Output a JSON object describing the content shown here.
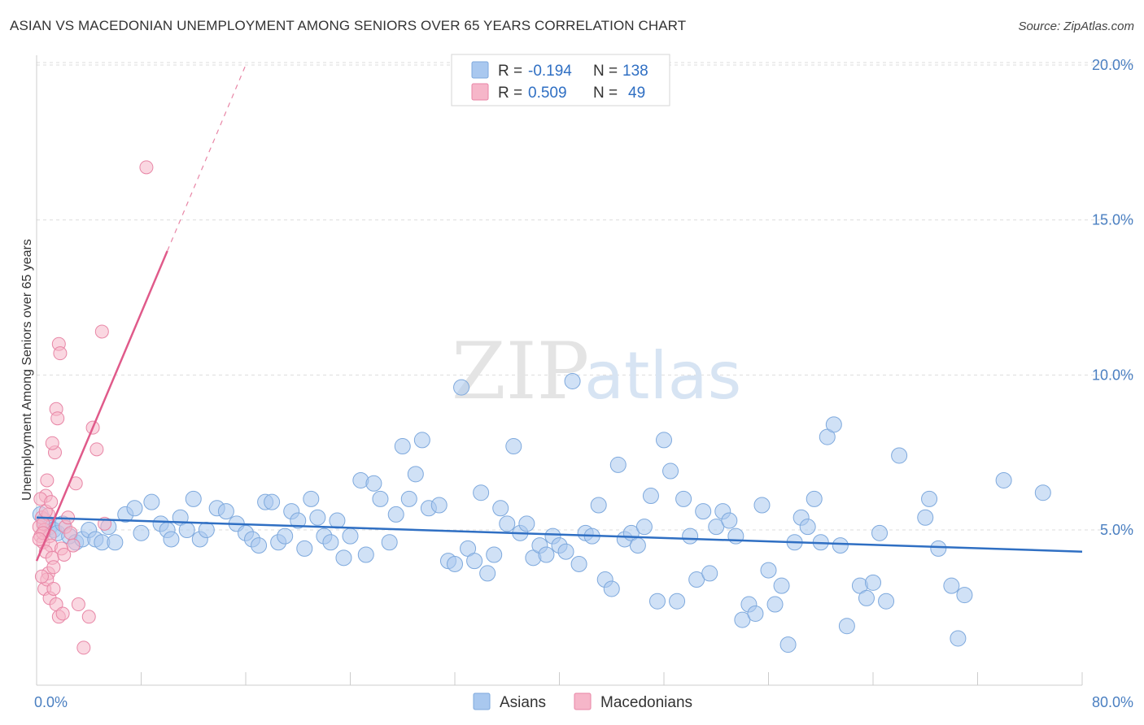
{
  "title": "ASIAN VS MACEDONIAN UNEMPLOYMENT AMONG SENIORS OVER 65 YEARS CORRELATION CHART",
  "source": "Source: ZipAtlas.com",
  "watermark": {
    "zip": "ZIP",
    "atlas": "atlas"
  },
  "colors": {
    "asian": "#a9c8ef",
    "asian_stroke": "#7ea9dd",
    "asian_line": "#2f6fc3",
    "mac": "#f6b6c9",
    "mac_stroke": "#e886a6",
    "mac_line": "#e05a8a"
  },
  "legend": {
    "r_label": "R =",
    "n_label": "N =",
    "asian": {
      "r": "-0.194",
      "n": "138"
    },
    "mac": {
      "r": "0.509",
      "n": "49"
    }
  },
  "chart_data": {
    "type": "scatter",
    "title": "ASIAN VS MACEDONIAN UNEMPLOYMENT AMONG SENIORS OVER 65 YEARS CORRELATION CHART",
    "xlabel": "",
    "ylabel": "Unemployment Among Seniors over 65 years",
    "xlim": [
      0,
      80
    ],
    "ylim": [
      0,
      21
    ],
    "x_tick_labels": [
      "0.0%",
      "80.0%"
    ],
    "y_ticks": [
      5,
      10,
      15,
      20
    ],
    "y_tick_labels": [
      "5.0%",
      "10.0%",
      "15.0%",
      "20.0%"
    ],
    "grid": true,
    "legend_position": "top-center",
    "series": [
      {
        "name": "Asians",
        "r": -0.194,
        "n": 138,
        "trend": {
          "x": [
            0,
            80
          ],
          "y": [
            5.4,
            4.3
          ]
        },
        "points": [
          [
            0.3,
            5.5
          ],
          [
            0.6,
            5.3
          ],
          [
            1,
            5.1
          ],
          [
            1.3,
            5
          ],
          [
            1.6,
            4.9
          ],
          [
            2,
            5.2
          ],
          [
            2.5,
            4.8
          ],
          [
            3,
            4.6
          ],
          [
            3.5,
            4.7
          ],
          [
            4,
            5
          ],
          [
            4.5,
            4.7
          ],
          [
            5,
            4.6
          ],
          [
            5.5,
            5.1
          ],
          [
            6,
            4.6
          ],
          [
            6.8,
            5.5
          ],
          [
            7.5,
            5.7
          ],
          [
            8,
            4.9
          ],
          [
            8.8,
            5.9
          ],
          [
            9.5,
            5.2
          ],
          [
            10,
            5
          ],
          [
            10.3,
            4.7
          ],
          [
            11,
            5.4
          ],
          [
            11.5,
            5
          ],
          [
            12,
            6
          ],
          [
            12.5,
            4.7
          ],
          [
            13,
            5
          ],
          [
            13.8,
            5.7
          ],
          [
            14.5,
            5.6
          ],
          [
            15.3,
            5.2
          ],
          [
            16,
            4.9
          ],
          [
            16.5,
            4.7
          ],
          [
            17,
            4.5
          ],
          [
            17.5,
            5.9
          ],
          [
            18,
            5.9
          ],
          [
            18.5,
            4.6
          ],
          [
            19,
            4.8
          ],
          [
            19.5,
            5.6
          ],
          [
            20,
            5.3
          ],
          [
            20.5,
            4.4
          ],
          [
            21,
            6
          ],
          [
            21.5,
            5.4
          ],
          [
            22,
            4.8
          ],
          [
            22.5,
            4.6
          ],
          [
            23,
            5.3
          ],
          [
            23.5,
            4.1
          ],
          [
            24,
            4.8
          ],
          [
            24.8,
            6.6
          ],
          [
            25.2,
            4.2
          ],
          [
            25.8,
            6.5
          ],
          [
            26.3,
            6
          ],
          [
            27,
            4.6
          ],
          [
            27.5,
            5.5
          ],
          [
            28,
            7.7
          ],
          [
            28.5,
            6
          ],
          [
            29,
            6.8
          ],
          [
            29.5,
            7.9
          ],
          [
            30,
            5.7
          ],
          [
            30.8,
            5.8
          ],
          [
            31.5,
            4
          ],
          [
            32,
            3.9
          ],
          [
            32.5,
            9.6
          ],
          [
            33,
            4.4
          ],
          [
            33.5,
            4
          ],
          [
            34,
            6.2
          ],
          [
            34.5,
            3.6
          ],
          [
            35,
            4.2
          ],
          [
            35.5,
            5.7
          ],
          [
            36,
            5.2
          ],
          [
            36.5,
            7.7
          ],
          [
            37,
            4.9
          ],
          [
            37.5,
            5.2
          ],
          [
            38,
            4.1
          ],
          [
            38.5,
            4.5
          ],
          [
            39,
            4.2
          ],
          [
            39.5,
            4.8
          ],
          [
            40,
            4.5
          ],
          [
            40.5,
            4.3
          ],
          [
            41,
            9.8
          ],
          [
            41.5,
            3.9
          ],
          [
            42,
            4.9
          ],
          [
            42.5,
            4.8
          ],
          [
            43,
            5.8
          ],
          [
            43.5,
            3.4
          ],
          [
            44,
            3.1
          ],
          [
            44.5,
            7.1
          ],
          [
            45,
            4.7
          ],
          [
            45.5,
            4.9
          ],
          [
            46,
            4.5
          ],
          [
            46.5,
            5.1
          ],
          [
            47,
            6.1
          ],
          [
            47.5,
            2.7
          ],
          [
            48,
            7.9
          ],
          [
            48.5,
            6.9
          ],
          [
            49,
            2.7
          ],
          [
            49.5,
            6
          ],
          [
            50,
            4.8
          ],
          [
            50.5,
            3.4
          ],
          [
            51,
            5.6
          ],
          [
            51.5,
            3.6
          ],
          [
            52,
            5.1
          ],
          [
            52.5,
            5.6
          ],
          [
            53,
            5.3
          ],
          [
            53.5,
            4.8
          ],
          [
            54,
            2.1
          ],
          [
            54.5,
            2.6
          ],
          [
            55,
            2.3
          ],
          [
            55.5,
            5.8
          ],
          [
            56,
            3.7
          ],
          [
            56.5,
            2.6
          ],
          [
            57,
            3.2
          ],
          [
            57.5,
            1.3
          ],
          [
            58,
            4.6
          ],
          [
            58.5,
            5.4
          ],
          [
            59,
            5.1
          ],
          [
            59.5,
            6
          ],
          [
            60,
            4.6
          ],
          [
            60.5,
            8
          ],
          [
            61,
            8.4
          ],
          [
            61.5,
            4.5
          ],
          [
            62,
            1.9
          ],
          [
            63,
            3.2
          ],
          [
            63.5,
            2.8
          ],
          [
            64,
            3.3
          ],
          [
            64.5,
            4.9
          ],
          [
            65,
            2.7
          ],
          [
            66,
            7.4
          ],
          [
            68,
            5.4
          ],
          [
            68.3,
            6
          ],
          [
            70,
            3.2
          ],
          [
            70.5,
            1.5
          ],
          [
            71,
            2.9
          ],
          [
            74,
            6.6
          ],
          [
            77,
            6.2
          ],
          [
            69,
            4.4
          ]
        ]
      },
      {
        "name": "Macedonians",
        "r": 0.509,
        "n": 49,
        "trend": {
          "x": [
            0,
            10
          ],
          "y": [
            4.0,
            14.0
          ]
        },
        "trend_dashed": {
          "x": [
            10,
            16
          ],
          "y": [
            14.0,
            20.0
          ]
        },
        "points": [
          [
            0.2,
            5.1
          ],
          [
            0.3,
            4.8
          ],
          [
            0.4,
            5.4
          ],
          [
            0.5,
            4.6
          ],
          [
            0.6,
            5
          ],
          [
            0.7,
            6.1
          ],
          [
            0.8,
            6.6
          ],
          [
            0.9,
            5.5
          ],
          [
            1,
            4.8
          ],
          [
            1.1,
            4.5
          ],
          [
            0.3,
            6
          ],
          [
            0.5,
            5.2
          ],
          [
            0.7,
            4.3
          ],
          [
            0.9,
            3.6
          ],
          [
            1.2,
            4.1
          ],
          [
            1.4,
            7.5
          ],
          [
            1.5,
            8.9
          ],
          [
            1.6,
            8.6
          ],
          [
            1.7,
            11
          ],
          [
            1.8,
            10.7
          ],
          [
            1.2,
            7.8
          ],
          [
            0.6,
            3.1
          ],
          [
            0.8,
            3.4
          ],
          [
            1,
            2.8
          ],
          [
            1.3,
            3.1
          ],
          [
            1.5,
            2.6
          ],
          [
            1.7,
            2.2
          ],
          [
            2,
            2.3
          ],
          [
            2.2,
            5.1
          ],
          [
            2.4,
            5.4
          ],
          [
            2.6,
            4.9
          ],
          [
            2.8,
            4.5
          ],
          [
            3,
            6.5
          ],
          [
            3.2,
            2.6
          ],
          [
            3.6,
            1.2
          ],
          [
            4,
            2.2
          ],
          [
            4.3,
            8.3
          ],
          [
            4.6,
            7.6
          ],
          [
            5,
            11.4
          ],
          [
            5.2,
            5.2
          ],
          [
            8.4,
            16.7
          ],
          [
            0.4,
            3.5
          ],
          [
            0.5,
            4.9
          ],
          [
            0.7,
            5.6
          ],
          [
            1.1,
            5.9
          ],
          [
            1.9,
            4.4
          ],
          [
            2.1,
            4.2
          ],
          [
            1.3,
            3.8
          ],
          [
            0.2,
            4.7
          ]
        ]
      }
    ]
  }
}
